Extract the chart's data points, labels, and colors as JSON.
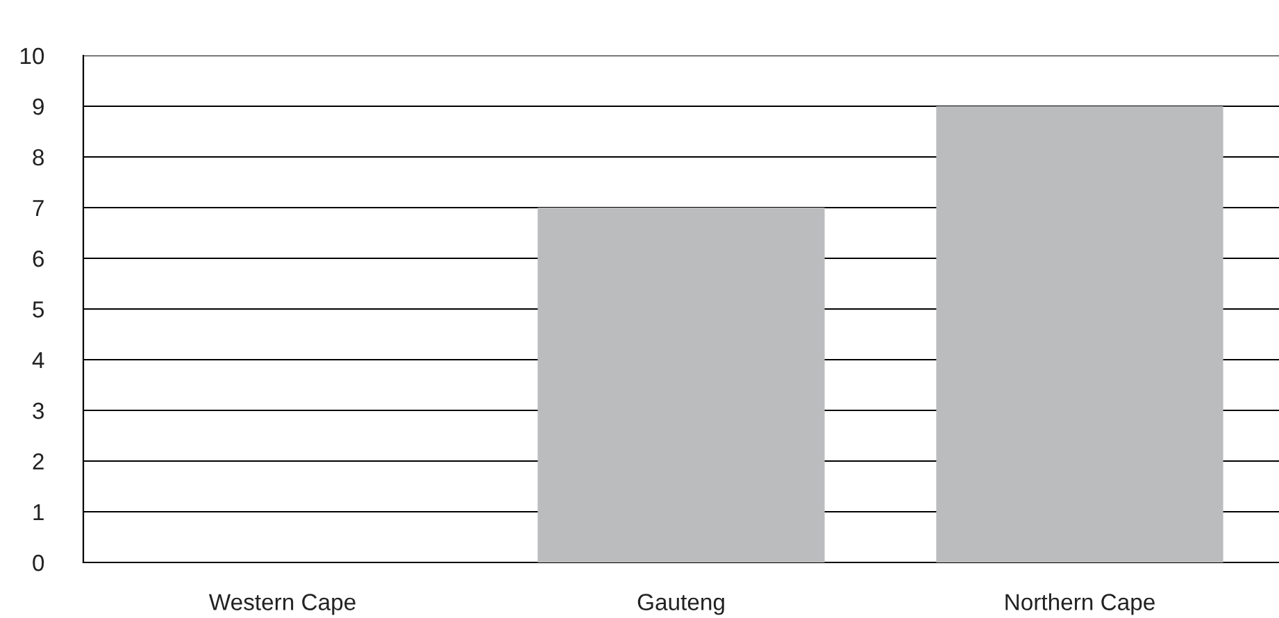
{
  "chart_data": {
    "type": "bar",
    "categories": [
      "Western Cape",
      "Gauteng",
      "Northern Cape"
    ],
    "values": [
      0,
      7,
      9
    ],
    "color": "#bbbcbe",
    "ylim": [
      0,
      10
    ],
    "yticks": [
      0,
      1,
      2,
      3,
      4,
      5,
      6,
      7,
      8,
      9,
      10
    ],
    "grid": "y",
    "legend": false
  }
}
